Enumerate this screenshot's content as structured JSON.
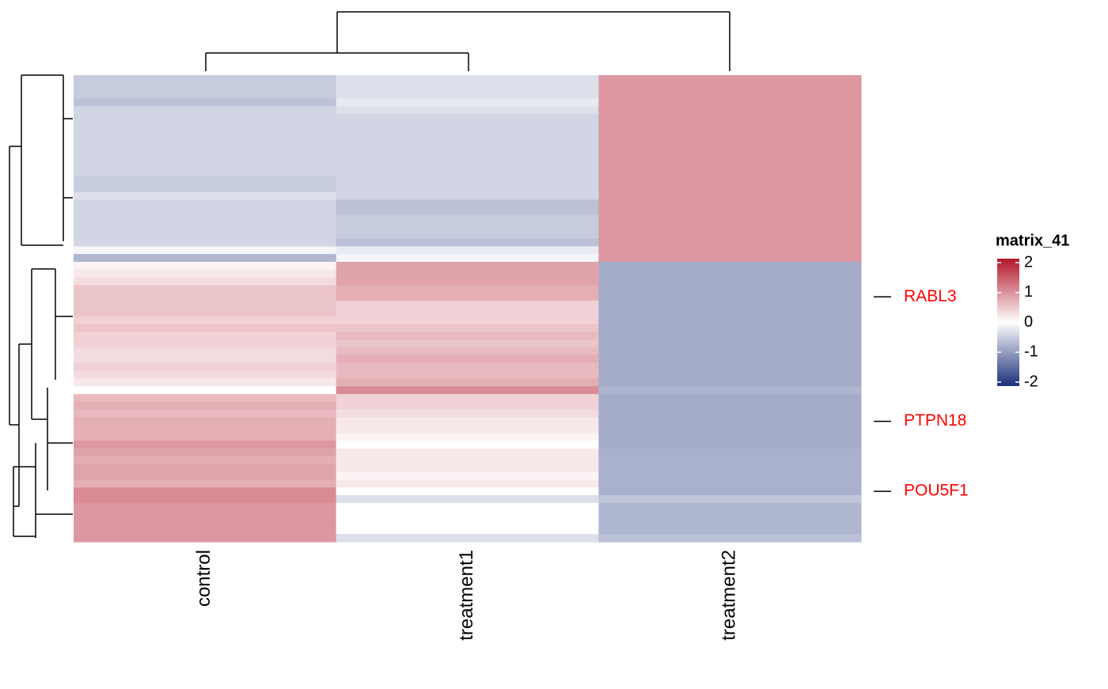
{
  "chart_data": {
    "type": "heatmap",
    "columns": [
      "control",
      "treatment1",
      "treatment2"
    ],
    "rows": [
      null,
      null,
      null,
      null,
      null,
      null,
      null,
      null,
      null,
      null,
      null,
      null,
      null,
      null,
      null,
      null,
      null,
      null,
      null,
      null,
      null,
      null,
      null,
      null,
      null,
      null,
      null,
      null,
      "RABL3",
      null,
      null,
      null,
      null,
      null,
      null,
      null,
      null,
      null,
      null,
      null,
      null,
      null,
      null,
      null,
      "PTPN18",
      null,
      null,
      null,
      null,
      null,
      null,
      null,
      null,
      "POU5F1",
      null,
      null,
      null,
      null,
      null,
      null
    ],
    "values": [
      [
        -0.5,
        -0.3,
        0.9
      ],
      [
        -0.5,
        -0.3,
        0.9
      ],
      [
        -0.5,
        -0.3,
        0.9
      ],
      [
        -0.6,
        -0.2,
        0.9
      ],
      [
        -0.4,
        -0.3,
        0.9
      ],
      [
        -0.4,
        -0.4,
        0.9
      ],
      [
        -0.4,
        -0.4,
        0.9
      ],
      [
        -0.4,
        -0.4,
        0.9
      ],
      [
        -0.4,
        -0.4,
        0.9
      ],
      [
        -0.4,
        -0.4,
        0.9
      ],
      [
        -0.4,
        -0.4,
        0.9
      ],
      [
        -0.4,
        -0.4,
        0.9
      ],
      [
        -0.4,
        -0.4,
        0.9
      ],
      [
        -0.5,
        -0.4,
        0.9
      ],
      [
        -0.5,
        -0.4,
        0.9
      ],
      [
        -0.3,
        -0.4,
        0.9
      ],
      [
        -0.4,
        -0.6,
        0.9
      ],
      [
        -0.4,
        -0.6,
        0.9
      ],
      [
        -0.4,
        -0.5,
        0.9
      ],
      [
        -0.4,
        -0.5,
        0.9
      ],
      [
        -0.4,
        -0.5,
        0.9
      ],
      [
        -0.4,
        -0.6,
        0.9
      ],
      [
        -0.1,
        -0.2,
        0.9
      ],
      [
        -0.7,
        -0.1,
        0.9
      ],
      [
        0.1,
        0.8,
        -0.8
      ],
      [
        0.2,
        0.8,
        -0.8
      ],
      [
        0.3,
        0.8,
        -0.8
      ],
      [
        0.5,
        0.7,
        -0.8
      ],
      [
        0.5,
        0.7,
        -0.8
      ],
      [
        0.5,
        0.4,
        -0.8
      ],
      [
        0.5,
        0.4,
        -0.8
      ],
      [
        0.4,
        0.4,
        -0.8
      ],
      [
        0.5,
        0.5,
        -0.8
      ],
      [
        0.4,
        0.6,
        -0.8
      ],
      [
        0.4,
        0.5,
        -0.8
      ],
      [
        0.3,
        0.6,
        -0.8
      ],
      [
        0.3,
        0.7,
        -0.8
      ],
      [
        0.4,
        0.6,
        -0.8
      ],
      [
        0.3,
        0.6,
        -0.8
      ],
      [
        0.2,
        0.7,
        -0.8
      ],
      [
        0,
        1.0,
        -0.7
      ],
      [
        0.6,
        0.4,
        -0.8
      ],
      [
        0.7,
        0.4,
        -0.8
      ],
      [
        0.6,
        0.3,
        -0.8
      ],
      [
        0.7,
        0.2,
        -0.8
      ],
      [
        0.7,
        0.2,
        -0.8
      ],
      [
        0.7,
        0.1,
        -0.8
      ],
      [
        0.9,
        0.0,
        -0.8
      ],
      [
        0.8,
        0.2,
        -0.75
      ],
      [
        0.7,
        0.2,
        -0.75
      ],
      [
        0.8,
        0.2,
        -0.75
      ],
      [
        0.8,
        0.1,
        -0.75
      ],
      [
        0.7,
        0.2,
        -0.75
      ],
      [
        1.0,
        0.0,
        -0.75
      ],
      [
        1.0,
        -0.3,
        -0.55
      ],
      [
        0.9,
        0.0,
        -0.7
      ],
      [
        0.9,
        0.0,
        -0.7
      ],
      [
        0.9,
        0.0,
        -0.7
      ],
      [
        0.9,
        0.0,
        -0.7
      ],
      [
        0.9,
        -0.3,
        -0.6
      ]
    ],
    "label_color": "#ff0000",
    "color_scale": {
      "low": "#1b2f7a",
      "mid": "#ffffff",
      "high": "#b2182b"
    },
    "legend_title": "matrix_41",
    "clim": [
      -2,
      2
    ],
    "cticks": [
      -2,
      -1,
      0,
      1,
      2
    ]
  }
}
